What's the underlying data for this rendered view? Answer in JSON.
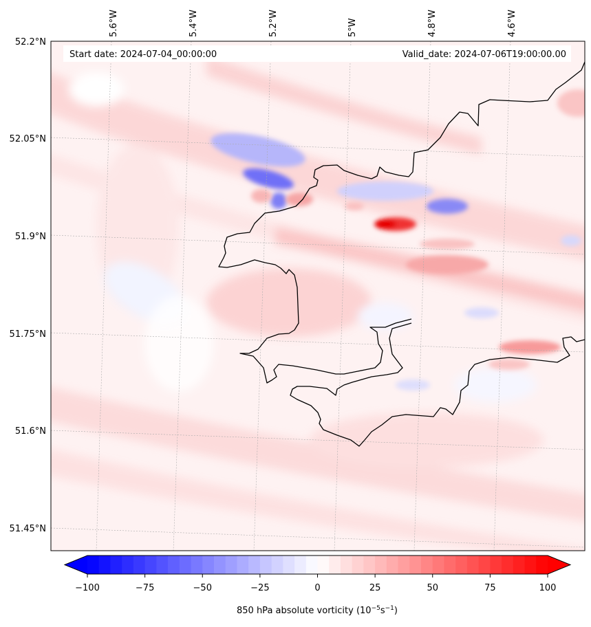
{
  "map": {
    "start_label": "Start date: 2024-07-04_00:00:00",
    "valid_label": "Valid_date: 2024-07-06T19:00:00.00",
    "lon_labels": [
      "5.6°W",
      "5.4°W",
      "5.2°W",
      "5°W",
      "4.8°W",
      "4.6°W"
    ],
    "lat_labels": [
      "52.2°N",
      "52.05°N",
      "51.9°N",
      "51.75°N",
      "51.6°N",
      "51.45°N"
    ],
    "field": "850 hPa absolute vorticity",
    "units": "10^-5 s^-1"
  },
  "colorbar": {
    "label_main": "850 hPa absolute vorticity (10",
    "label_exp1": "−5",
    "label_mid": "s",
    "label_exp2": "−1",
    "label_close": ")",
    "min": -100,
    "max": 100,
    "ticks": [
      "−100",
      "−75",
      "−50",
      "−25",
      "0",
      "25",
      "50",
      "75",
      "100"
    ],
    "tick_values": [
      -100,
      -75,
      -50,
      -25,
      0,
      25,
      50,
      75,
      100
    ],
    "colors": {
      "negative": "#0000ff",
      "neutral": "#ffffff",
      "positive": "#ff0000"
    }
  }
}
